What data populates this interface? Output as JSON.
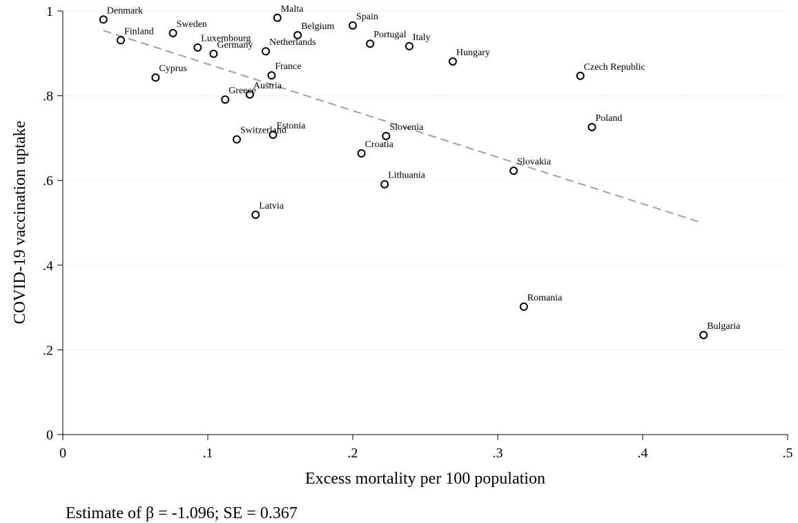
{
  "chart_data": {
    "type": "scatter",
    "x_label": "Excess mortality per 100 population",
    "y_label": "COVID-19 vaccination uptake",
    "note": "Estimate of β =  -1.096; SE =   0.367",
    "xlim": [
      0,
      0.5
    ],
    "xticks": [
      0,
      {
        "value": 0.1,
        "label": ".1"
      },
      {
        "value": 0.2,
        "label": ".2"
      },
      {
        "value": 0.3,
        "label": ".3"
      },
      {
        "value": 0.4,
        "label": ".4"
      },
      {
        "value": 0.5,
        "label": ".5"
      }
    ],
    "ylim": [
      0,
      1
    ],
    "yticks": [
      0,
      {
        "value": 0.2,
        "label": ".2"
      },
      {
        "value": 0.4,
        "label": ".4"
      },
      {
        "value": 0.6,
        "label": ".6"
      },
      {
        "value": 0.8,
        "label": ".8"
      },
      1
    ],
    "grid": true,
    "color": "#000000",
    "labels": [
      "Denmark",
      "Finland",
      "Sweden",
      "Luxembourg",
      "Germany",
      "Cyprus",
      "Malta",
      "Belgium",
      "Netherlands",
      "Spain",
      "Portugal",
      "Italy",
      "Hungary",
      "Czech Republic",
      "France",
      "Austria",
      "Greece",
      "Poland",
      "Slovenia",
      "Switzerland",
      "Estonia",
      "Croatia",
      "Slovakia",
      "Lithuania",
      "Latvia",
      "Romania",
      "Bulgaria"
    ],
    "x": [
      0.028,
      0.04,
      0.076,
      0.093,
      0.104,
      0.064,
      0.148,
      0.162,
      0.14,
      0.2,
      0.212,
      0.239,
      0.269,
      0.357,
      0.144,
      0.129,
      0.112,
      0.365,
      0.223,
      0.12,
      0.145,
      0.206,
      0.311,
      0.222,
      0.133,
      0.318,
      0.442
    ],
    "y": [
      0.98,
      0.931,
      0.948,
      0.914,
      0.899,
      0.843,
      0.984,
      0.943,
      0.905,
      0.966,
      0.923,
      0.917,
      0.881,
      0.847,
      0.848,
      0.803,
      0.791,
      0.726,
      0.705,
      0.697,
      0.708,
      0.664,
      0.623,
      0.591,
      0.519,
      0.302,
      0.235
    ],
    "fit": {
      "color": "#a0a0a0",
      "x": [
        0.028,
        0.439
      ],
      "y": [
        0.954,
        0.502
      ]
    }
  }
}
